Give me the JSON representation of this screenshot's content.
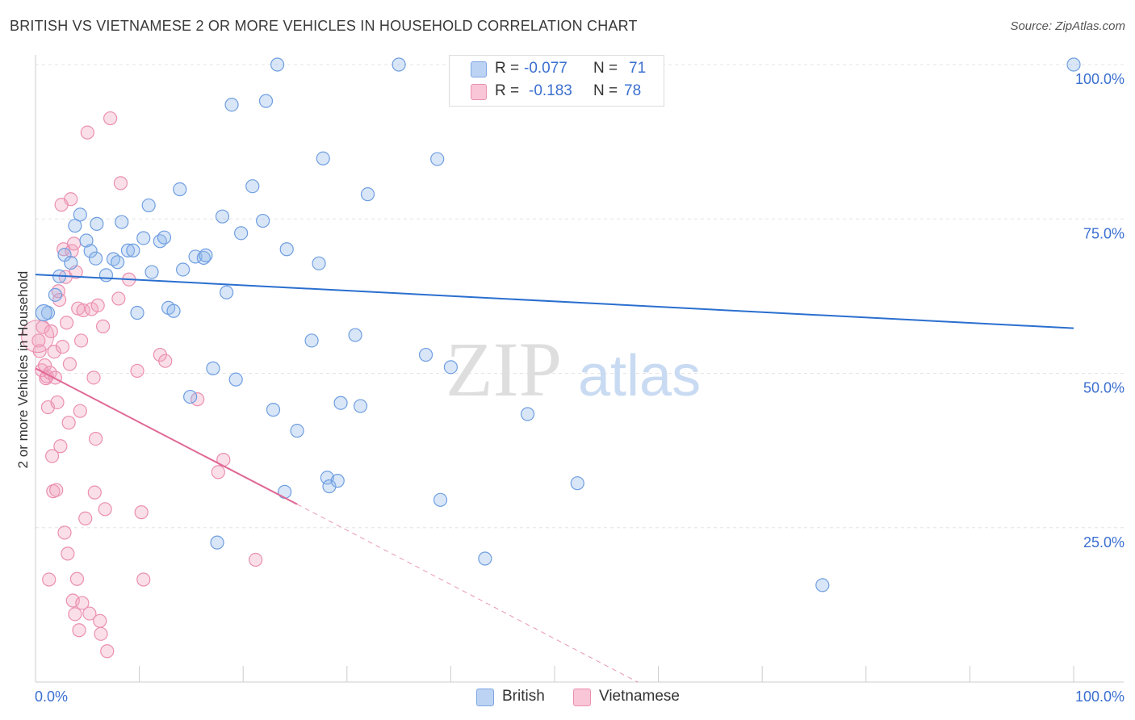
{
  "title": "BRITISH VS VIETNAMESE 2 OR MORE VEHICLES IN HOUSEHOLD CORRELATION CHART",
  "source": "Source: ZipAtlas.com",
  "watermark": {
    "zip": "ZIP",
    "atlas": "atlas"
  },
  "legend": {
    "british": {
      "r_label": "R =",
      "r_value": "-0.077",
      "n_label": "N =",
      "n_value": "71"
    },
    "vietnamese": {
      "r_label": "R =",
      "r_value": "-0.183",
      "n_label": "N =",
      "n_value": "78"
    }
  },
  "chart_data": {
    "type": "scatter",
    "title": "BRITISH VS VIETNAMESE 2 OR MORE VEHICLES IN HOUSEHOLD CORRELATION CHART",
    "xlabel": "",
    "ylabel": "2 or more Vehicles in Household",
    "xlim": [
      0,
      100
    ],
    "ylim": [
      0,
      100
    ],
    "x_tick_labels": [
      "0.0%",
      "100.0%"
    ],
    "y_tick_labels": [
      "25.0%",
      "50.0%",
      "75.0%",
      "100.0%"
    ],
    "y_ticks": [
      25,
      50,
      75,
      100
    ],
    "colors": {
      "british": "#8fb6ec",
      "vietnamese": "#f2a3be",
      "british_line": "#2a6fcf",
      "vietnamese_line": "#e06a96",
      "axis_text": "#3b6fd0"
    },
    "series": [
      {
        "name": "British",
        "trend": {
          "x0": 0,
          "y0": 66.0,
          "x1": 100,
          "y1": 57.3
        },
        "points": [
          [
            1.2,
            59.8
          ],
          [
            1.9,
            62.7
          ],
          [
            2.3,
            65.7
          ],
          [
            2.8,
            69.2
          ],
          [
            3.4,
            67.9
          ],
          [
            3.8,
            73.9
          ],
          [
            4.3,
            75.7
          ],
          [
            4.9,
            71.5
          ],
          [
            5.3,
            69.8
          ],
          [
            5.8,
            68.6
          ],
          [
            5.9,
            74.2
          ],
          [
            6.8,
            65.9
          ],
          [
            7.5,
            68.5
          ],
          [
            7.9,
            68.0
          ],
          [
            8.3,
            74.5
          ],
          [
            8.9,
            69.9
          ],
          [
            9.4,
            69.9
          ],
          [
            9.8,
            59.8
          ],
          [
            10.4,
            71.9
          ],
          [
            10.9,
            77.2
          ],
          [
            11.2,
            66.4
          ],
          [
            12.0,
            71.4
          ],
          [
            12.4,
            72.0
          ],
          [
            12.8,
            60.6
          ],
          [
            13.3,
            60.1
          ],
          [
            13.9,
            79.8
          ],
          [
            14.2,
            66.8
          ],
          [
            14.9,
            46.2
          ],
          [
            15.4,
            68.9
          ],
          [
            16.2,
            68.7
          ],
          [
            16.4,
            69.1
          ],
          [
            17.1,
            50.8
          ],
          [
            17.5,
            22.6
          ],
          [
            18.0,
            75.4
          ],
          [
            18.4,
            63.1
          ],
          [
            18.9,
            93.5
          ],
          [
            19.3,
            49.0
          ],
          [
            19.8,
            72.7
          ],
          [
            20.9,
            80.3
          ],
          [
            21.9,
            74.7
          ],
          [
            22.2,
            94.1
          ],
          [
            22.9,
            44.1
          ],
          [
            23.3,
            100.0
          ],
          [
            24.0,
            30.8
          ],
          [
            24.2,
            70.1
          ],
          [
            25.2,
            40.7
          ],
          [
            26.6,
            55.3
          ],
          [
            27.3,
            67.8
          ],
          [
            27.7,
            84.8
          ],
          [
            28.1,
            33.1
          ],
          [
            28.3,
            31.7
          ],
          [
            29.1,
            32.6
          ],
          [
            29.4,
            45.2
          ],
          [
            30.8,
            56.2
          ],
          [
            31.3,
            44.7
          ],
          [
            32.0,
            79.0
          ],
          [
            35.0,
            100.0
          ],
          [
            37.6,
            53.0
          ],
          [
            38.7,
            84.7
          ],
          [
            39.0,
            29.5
          ],
          [
            40.0,
            51.0
          ],
          [
            43.3,
            20.0
          ],
          [
            47.4,
            43.4
          ],
          [
            52.2,
            32.2
          ],
          [
            75.8,
            15.7
          ],
          [
            100.0,
            100.0
          ]
        ]
      },
      {
        "name": "Vietnamese",
        "trend": {
          "x0": 0,
          "y0": 50.8,
          "x1": 25.2,
          "y1": 28.8,
          "dash_to_x": 58.0,
          "dash_to_y": 0.0
        },
        "points": [
          [
            0.3,
            55.3
          ],
          [
            0.4,
            53.6
          ],
          [
            0.6,
            50.5
          ],
          [
            0.7,
            57.5
          ],
          [
            0.9,
            51.3
          ],
          [
            1.0,
            49.2
          ],
          [
            1.1,
            49.5
          ],
          [
            1.2,
            44.5
          ],
          [
            1.3,
            16.6
          ],
          [
            1.4,
            50.1
          ],
          [
            1.5,
            56.8
          ],
          [
            1.6,
            36.6
          ],
          [
            1.7,
            30.9
          ],
          [
            1.8,
            53.5
          ],
          [
            1.9,
            49.3
          ],
          [
            2.0,
            31.1
          ],
          [
            2.1,
            45.3
          ],
          [
            2.2,
            63.3
          ],
          [
            2.3,
            61.9
          ],
          [
            2.4,
            38.2
          ],
          [
            2.5,
            77.3
          ],
          [
            2.6,
            54.3
          ],
          [
            2.7,
            70.1
          ],
          [
            2.8,
            24.2
          ],
          [
            2.9,
            65.6
          ],
          [
            3.0,
            58.2
          ],
          [
            3.1,
            20.8
          ],
          [
            3.2,
            42.0
          ],
          [
            3.3,
            51.5
          ],
          [
            3.4,
            78.2
          ],
          [
            3.5,
            69.8
          ],
          [
            3.6,
            13.2
          ],
          [
            3.7,
            71.0
          ],
          [
            3.8,
            11.0
          ],
          [
            3.9,
            66.4
          ],
          [
            4.0,
            16.7
          ],
          [
            4.1,
            60.5
          ],
          [
            4.2,
            8.4
          ],
          [
            4.3,
            43.9
          ],
          [
            4.4,
            55.3
          ],
          [
            4.5,
            12.8
          ],
          [
            4.6,
            60.2
          ],
          [
            4.8,
            26.5
          ],
          [
            5.0,
            89.0
          ],
          [
            5.2,
            11.1
          ],
          [
            5.4,
            60.4
          ],
          [
            5.6,
            49.3
          ],
          [
            5.7,
            30.7
          ],
          [
            5.8,
            39.4
          ],
          [
            6.0,
            61.0
          ],
          [
            6.2,
            9.9
          ],
          [
            6.3,
            7.8
          ],
          [
            6.5,
            57.6
          ],
          [
            6.7,
            28.0
          ],
          [
            6.9,
            5.0
          ],
          [
            7.2,
            91.3
          ],
          [
            8.0,
            62.1
          ],
          [
            8.2,
            80.8
          ],
          [
            9.0,
            65.2
          ],
          [
            9.8,
            50.4
          ],
          [
            10.2,
            27.5
          ],
          [
            10.4,
            16.6
          ],
          [
            12.0,
            53.0
          ],
          [
            12.5,
            52.0
          ],
          [
            15.6,
            45.8
          ],
          [
            17.6,
            34.0
          ],
          [
            18.1,
            36.0
          ],
          [
            21.2,
            19.8
          ]
        ]
      }
    ]
  },
  "bottom_legend": {
    "british_label": "British",
    "vietnamese_label": "Vietnamese"
  }
}
